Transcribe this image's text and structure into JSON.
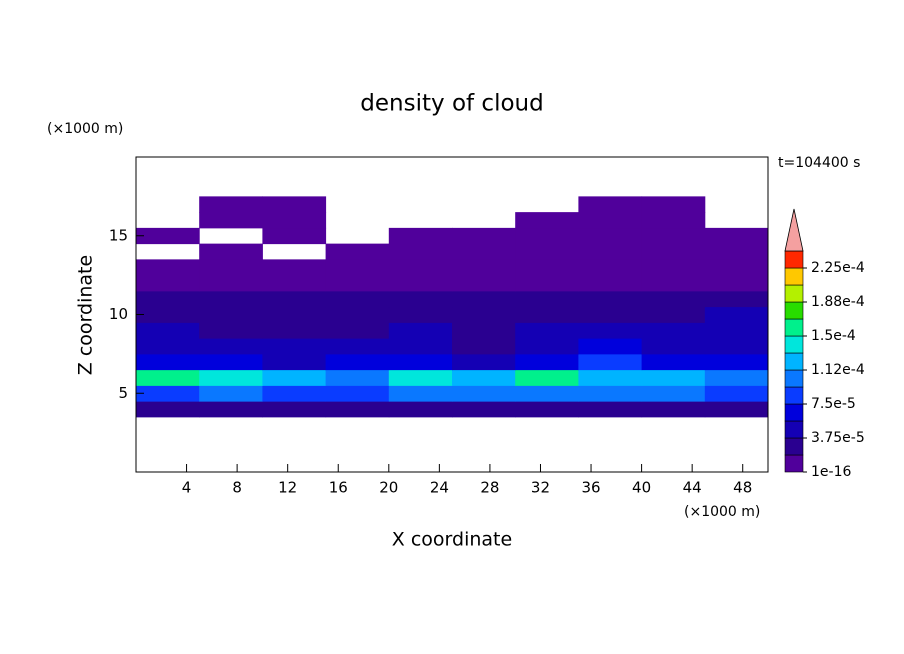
{
  "chart_data": {
    "type": "contour",
    "title": "density of cloud",
    "x_label": "X coordinate",
    "y_label": "Z coordinate",
    "x_unit": "(×1000 m)",
    "y_unit": "(×1000 m)",
    "annotation": "t=104400 s",
    "xlim": [
      0,
      50
    ],
    "ylim": [
      0,
      20
    ],
    "xticks": [
      4,
      8,
      12,
      16,
      20,
      24,
      28,
      32,
      36,
      40,
      44,
      48
    ],
    "yticks": [
      5,
      10,
      15
    ],
    "x": [
      2.5,
      7.5,
      12.5,
      17.5,
      22.5,
      27.5,
      32.5,
      37.5,
      42.5,
      47.5
    ],
    "y": [
      4,
      5,
      6,
      7,
      8,
      9,
      10,
      11,
      12,
      13,
      14,
      15,
      16,
      17
    ],
    "z": [
      [
        3e-05,
        3.5e-05,
        3e-05,
        3e-05,
        3.5e-05,
        3e-05,
        3.5e-05,
        3e-05,
        3e-05,
        3e-05
      ],
      [
        9e-05,
        0.0001,
        9e-05,
        9e-05,
        9.5e-05,
        0.0001,
        0.0001,
        9.5e-05,
        0.0001,
        9e-05
      ],
      [
        0.00016,
        0.00014,
        0.00012,
        0.00011,
        0.00014,
        0.00012,
        0.00015,
        0.00012,
        0.00013,
        0.00011
      ],
      [
        6e-05,
        7e-05,
        5e-05,
        6e-05,
        6e-05,
        5e-05,
        7e-05,
        8e-05,
        7e-05,
        6e-05
      ],
      [
        4e-05,
        5e-05,
        4e-05,
        4e-05,
        4e-05,
        3e-05,
        5e-05,
        6e-05,
        5e-05,
        5e-05
      ],
      [
        4e-05,
        3e-05,
        3e-05,
        3e-05,
        4e-05,
        3e-05,
        4e-05,
        5e-05,
        4e-05,
        5e-05
      ],
      [
        3e-05,
        3e-05,
        2.5e-05,
        2e-05,
        3e-05,
        3e-05,
        3e-05,
        3e-05,
        3e-05,
        4e-05
      ],
      [
        2.5e-05,
        2e-05,
        2e-05,
        2e-05,
        2e-05,
        2.5e-05,
        2e-05,
        2e-05,
        2e-05,
        2.5e-05
      ],
      [
        1.5e-05,
        1e-05,
        1e-05,
        1e-05,
        1e-05,
        1e-05,
        1e-05,
        1e-05,
        1.5e-05,
        1.5e-05
      ],
      [
        5e-06,
        5e-06,
        5e-06,
        5e-06,
        5e-06,
        5e-06,
        5e-06,
        5e-06,
        5e-06,
        5e-06
      ],
      [
        null,
        1e-06,
        null,
        1e-06,
        1e-06,
        1e-06,
        1e-06,
        1e-06,
        1e-06,
        1e-06
      ],
      [
        1e-06,
        null,
        1e-06,
        null,
        1e-06,
        1e-06,
        1e-06,
        1e-06,
        1e-06,
        1e-06
      ],
      [
        null,
        1e-06,
        1e-06,
        null,
        null,
        null,
        1e-06,
        1e-06,
        1e-06,
        null
      ],
      [
        null,
        1e-06,
        1e-06,
        null,
        null,
        null,
        null,
        1e-06,
        1e-06,
        null
      ]
    ],
    "colorbar": {
      "levels": [
        1e-16,
        1.875e-05,
        3.75e-05,
        5.625e-05,
        7.5e-05,
        9.375e-05,
        0.0001125,
        0.00013125,
        0.00015,
        0.00016875,
        0.0001875,
        0.00020625,
        0.000225,
        0.00024375
      ],
      "colors": [
        "#50009b",
        "#2a0090",
        "#1400b4",
        "#0000dc",
        "#0a3cff",
        "#0a78ff",
        "#00b4ff",
        "#00e6dc",
        "#00f08c",
        "#28dc00",
        "#b4f000",
        "#ffc800",
        "#ff2800"
      ],
      "over_color": "#f4a0a0",
      "ticks": [
        {
          "value": 1e-16,
          "label": "1e-16"
        },
        {
          "value": 3.75e-05,
          "label": "3.75e-5"
        },
        {
          "value": 7.5e-05,
          "label": "7.5e-5"
        },
        {
          "value": 0.0001125,
          "label": "1.12e-4"
        },
        {
          "value": 0.00015,
          "label": "1.5e-4"
        },
        {
          "value": 0.0001875,
          "label": "1.88e-4"
        },
        {
          "value": 0.000225,
          "label": "2.25e-4"
        }
      ]
    }
  }
}
